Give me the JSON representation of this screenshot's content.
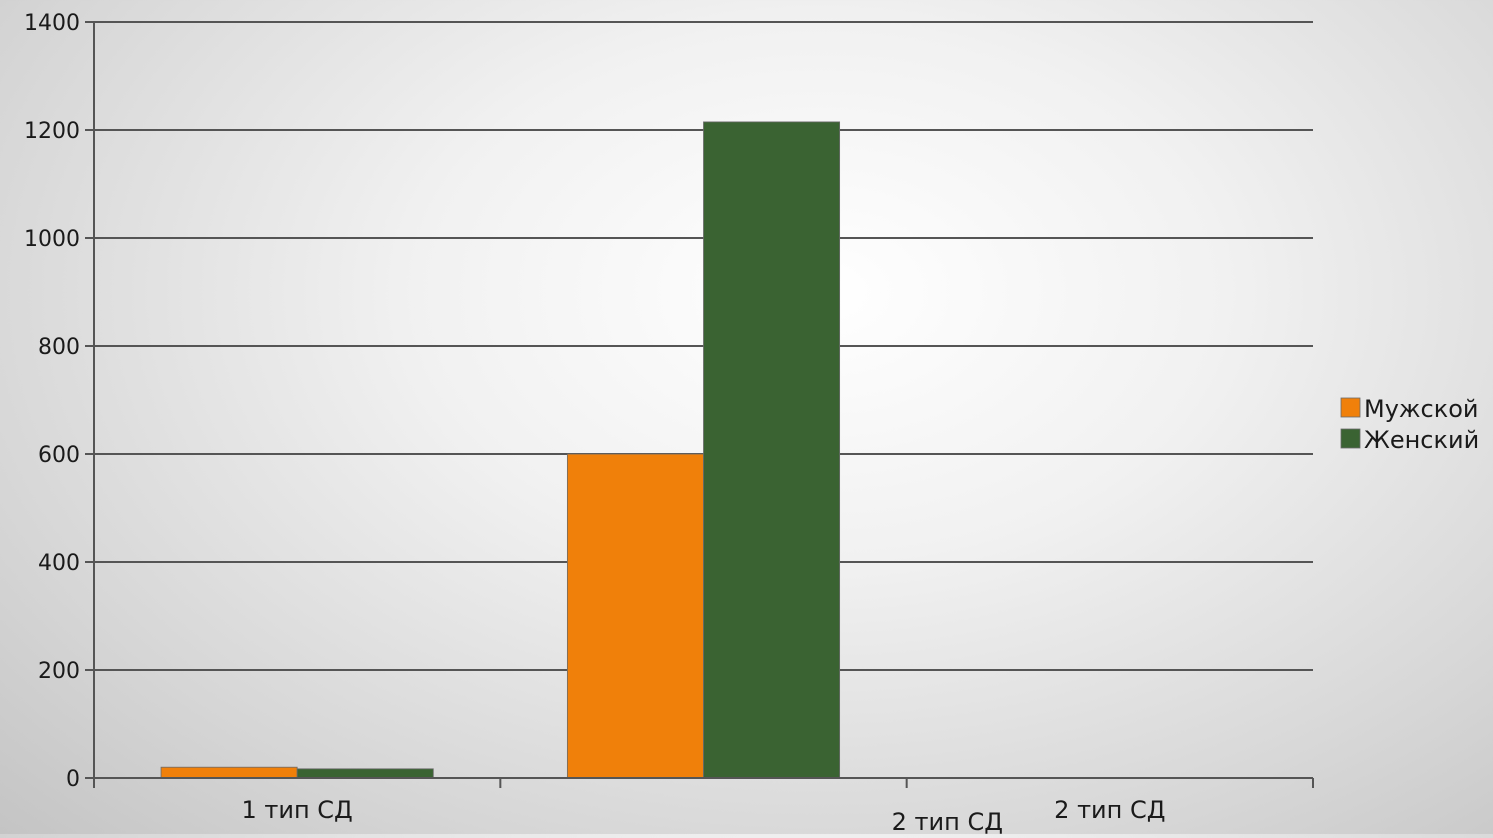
{
  "chart_data": {
    "type": "bar",
    "title": "",
    "xlabel": "",
    "ylabel": "",
    "ylim": [
      0,
      1400
    ],
    "yticks": [
      0,
      200,
      400,
      600,
      800,
      1000,
      1200,
      1400
    ],
    "grid": true,
    "legend_position": "right",
    "categories": [
      "1 тип СД",
      "2 тип СД",
      "2 тип СД"
    ],
    "category_labels": [
      {
        "text": "1 тип СД"
      },
      {
        "text": "2 тип СД"
      },
      {
        "text": "2 тип СД"
      }
    ],
    "series": [
      {
        "name": "Мужской",
        "color": "#f0800a",
        "values": [
          20,
          600,
          0
        ]
      },
      {
        "name": "Женский",
        "color": "#3a6332",
        "values": [
          17,
          1215,
          0
        ]
      }
    ]
  }
}
